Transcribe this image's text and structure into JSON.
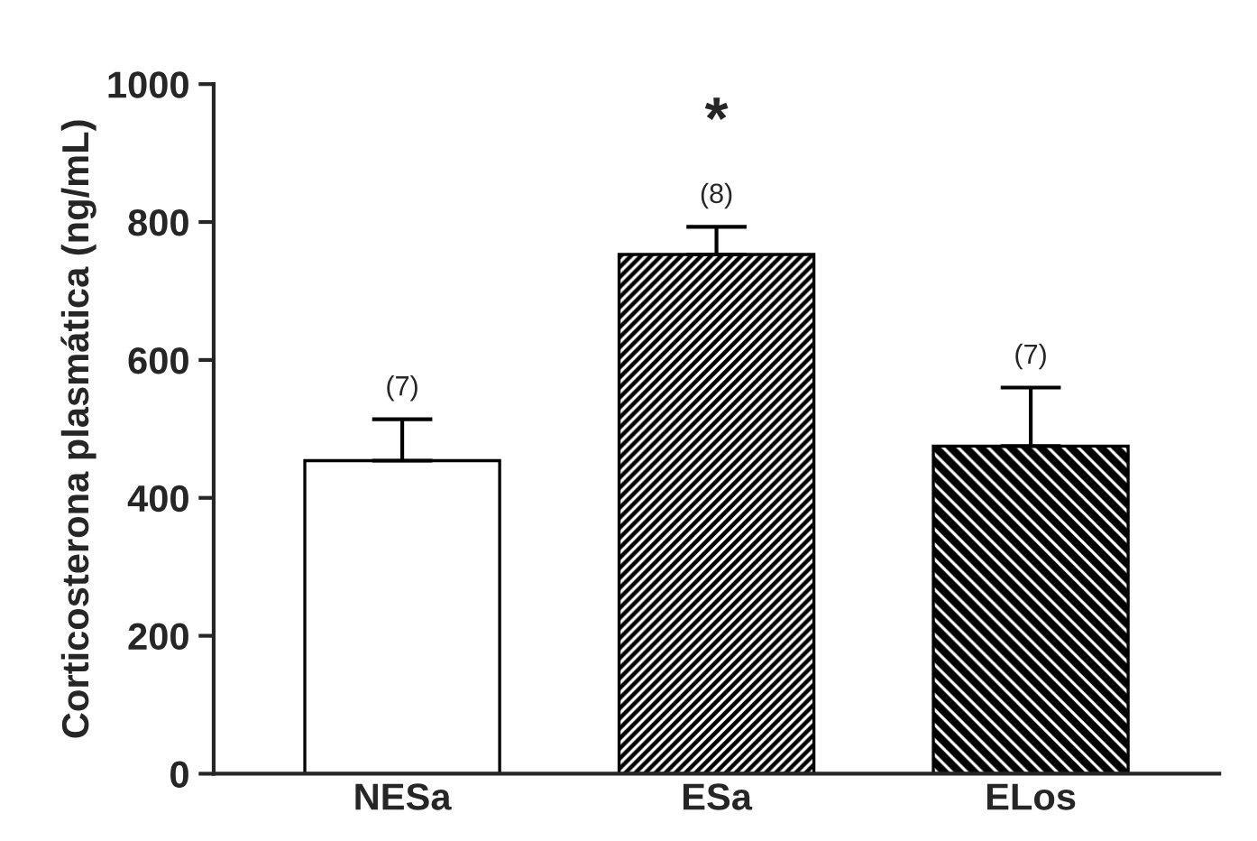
{
  "chart_data": {
    "type": "bar",
    "ylabel": "Corticosterona plasmática (ng/mL)",
    "categories": [
      "NESa",
      "ESa",
      "ELos"
    ],
    "values": [
      454,
      753,
      475
    ],
    "colors": [
      "#ffffff",
      "#000000",
      "#000000"
    ],
    "errors": [
      [
        454,
        514
      ],
      [
        753,
        793
      ],
      [
        475,
        560
      ]
    ],
    "ylim": [
      0,
      1000
    ],
    "yticks": [
      0,
      200,
      400,
      600,
      800,
      1000
    ],
    "grid": false,
    "annotations": [
      "(7)",
      "(8)",
      "(7)",
      "*"
    ]
  }
}
